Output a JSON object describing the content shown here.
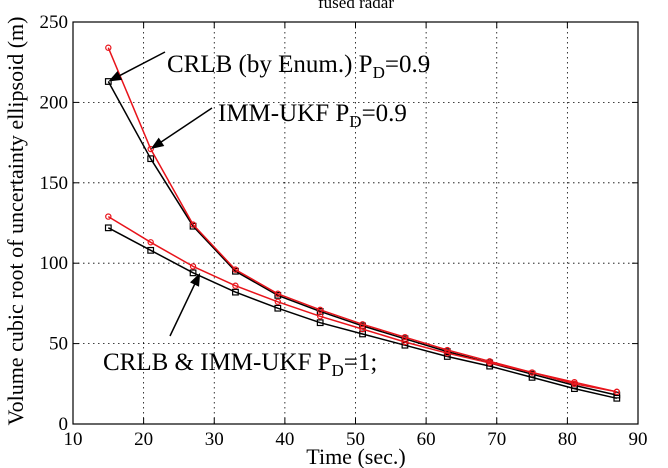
{
  "chart_data": {
    "type": "line",
    "title": "fused radar",
    "xlabel": "Time (sec.)",
    "ylabel": "Volume cubic root of uncertainty ellipsoid (m)",
    "xlim": [
      10,
      90
    ],
    "ylim": [
      0,
      250
    ],
    "xticks": [
      10,
      20,
      30,
      40,
      50,
      60,
      70,
      80,
      90
    ],
    "yticks": [
      0,
      50,
      100,
      150,
      200,
      250
    ],
    "grid": true,
    "colors": {
      "crlb": "#e8141b",
      "immukf": "#000000"
    },
    "x": [
      15,
      21,
      27,
      33,
      39,
      45,
      51,
      57,
      63,
      69,
      75,
      81,
      87
    ],
    "series": [
      {
        "key": "crlb_pd09",
        "color": "#e8141b",
        "marker": "circle",
        "values": [
          234,
          171,
          124,
          96,
          81,
          71,
          62,
          54,
          46,
          39,
          32,
          26,
          20
        ]
      },
      {
        "key": "imm_pd09",
        "color": "#000000",
        "marker": "square",
        "values": [
          213,
          165,
          123,
          95,
          80,
          70,
          61,
          53,
          45,
          38,
          31,
          24,
          18
        ]
      },
      {
        "key": "crlb_pd1",
        "color": "#e8141b",
        "marker": "circle",
        "values": [
          129,
          113,
          98,
          86,
          76,
          67,
          59,
          51,
          44,
          38,
          32,
          25,
          20
        ]
      },
      {
        "key": "imm_pd1",
        "color": "#000000",
        "marker": "square",
        "values": [
          122,
          108,
          94,
          82,
          72,
          63,
          56,
          49,
          42,
          36,
          29,
          22,
          16
        ]
      }
    ],
    "annotations": [
      {
        "key": "crlb09",
        "text": "CRLB (by Enum.) P",
        "sub": "D",
        "suffix": "=0.9",
        "arrow_to": [
          15,
          213
        ]
      },
      {
        "key": "imm09",
        "text": "IMM-UKF P",
        "sub": "D",
        "suffix": "=0.9",
        "arrow_to": [
          21,
          171
        ]
      },
      {
        "key": "pd1",
        "text": "CRLB & IMM-UKF P",
        "sub": "D",
        "suffix": "=1;",
        "arrow_to": [
          28,
          94
        ]
      }
    ]
  }
}
